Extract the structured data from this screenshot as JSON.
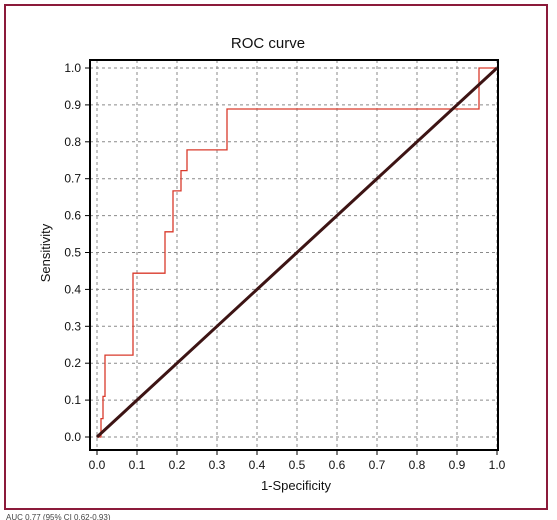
{
  "chart_data": {
    "type": "line",
    "title": "ROC curve",
    "xlabel": "1-Specificity",
    "ylabel": "Sensitivity",
    "xlim": [
      0,
      1
    ],
    "ylim": [
      0,
      1
    ],
    "grid": true,
    "x_ticks": [
      "0.0",
      "0.1",
      "0.2",
      "0.3",
      "0.4",
      "0.5",
      "0.6",
      "0.7",
      "0.8",
      "0.9",
      "1.0"
    ],
    "y_ticks": [
      "0.0",
      "0.1",
      "0.2",
      "0.3",
      "0.4",
      "0.5",
      "0.6",
      "0.7",
      "0.8",
      "0.9",
      "1.0"
    ],
    "series": [
      {
        "color": "#d93a2b",
        "points": [
          [
            0,
            0
          ],
          [
            0.01,
            0
          ],
          [
            0.01,
            0.05
          ],
          [
            0.015,
            0.05
          ],
          [
            0.015,
            0.11
          ],
          [
            0.02,
            0.11
          ],
          [
            0.02,
            0.222
          ],
          [
            0.09,
            0.222
          ],
          [
            0.09,
            0.444
          ],
          [
            0.17,
            0.444
          ],
          [
            0.17,
            0.556
          ],
          [
            0.19,
            0.556
          ],
          [
            0.19,
            0.667
          ],
          [
            0.21,
            0.667
          ],
          [
            0.21,
            0.722
          ],
          [
            0.225,
            0.722
          ],
          [
            0.225,
            0.778
          ],
          [
            0.325,
            0.778
          ],
          [
            0.325,
            0.889
          ],
          [
            0.955,
            0.889
          ],
          [
            0.955,
            1.0
          ],
          [
            1.0,
            1.0
          ]
        ]
      },
      {
        "color": "#3d1414",
        "points": [
          [
            0,
            0
          ],
          [
            1,
            1
          ]
        ]
      }
    ]
  },
  "footnote": "AUC 0.77 (95% CI 0.62-0.93)"
}
